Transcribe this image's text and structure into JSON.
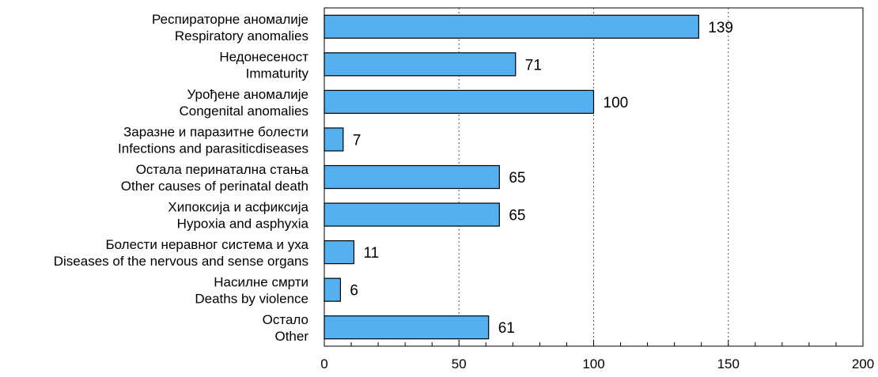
{
  "chart_data": {
    "type": "bar",
    "orientation": "horizontal",
    "categories": [
      {
        "sr": "Респираторне аномалије",
        "en": "Respiratory anomalies"
      },
      {
        "sr": "Недонесеност",
        "en": "Immaturity"
      },
      {
        "sr": "Урођене аномалије",
        "en": "Congenital anomalies"
      },
      {
        "sr": "Заразне и паразитне болести",
        "en": "Infections and parasiticdiseases"
      },
      {
        "sr": "Остала перинатална стања",
        "en": "Other causes of perinatal death"
      },
      {
        "sr": "Хипоксија и асфиксија",
        "en": "Hypoxia and asphyxia"
      },
      {
        "sr": "Болести неравног система и уха",
        "en": "Diseases of the nervous and sense organs"
      },
      {
        "sr": "Насилне смрти",
        "en": "Deaths by violence"
      },
      {
        "sr": "Остало",
        "en": "Other"
      }
    ],
    "values": [
      139,
      71,
      100,
      7,
      65,
      65,
      11,
      6,
      61
    ],
    "xlim": [
      0,
      200
    ],
    "x_ticks": [
      0,
      50,
      100,
      150,
      200
    ],
    "minor_tick_step": 10,
    "grid": "vertical dotted at 50, 100, 150",
    "bar_color": "#55b0f0",
    "bar_edge_color": "#000000"
  }
}
